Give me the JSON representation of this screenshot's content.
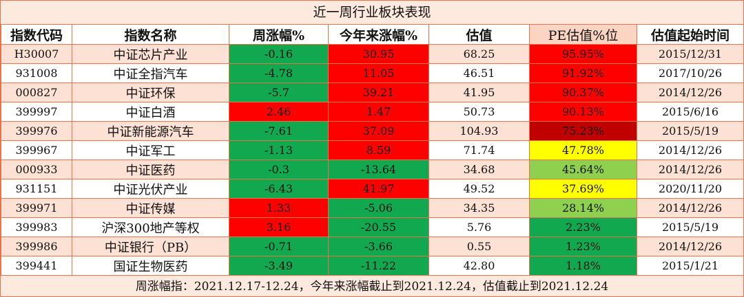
{
  "title": "近一周行业板块表现",
  "headers": [
    "指数代码",
    "指数名称",
    "周涨幅%",
    "今年来涨幅%",
    "估值",
    "PE估值%位",
    "估值起始时间"
  ],
  "colors": {
    "green": "#12a84f",
    "red": "#ff0000",
    "dark_red": "#c00000",
    "yellow": "#ffff00",
    "light_green": "#8fd14f",
    "border": "#e8734a",
    "row_alt": "#fde1d4"
  },
  "rows": [
    {
      "code": "H30007",
      "name": "中证芯片产业",
      "week": "-0.16",
      "week_color": "green",
      "ytd": "30.95",
      "ytd_color": "red",
      "val": "68.25",
      "pe": "95.95%",
      "pe_color": "red",
      "start": "2015/12/31"
    },
    {
      "code": "931008",
      "name": "中证全指汽车",
      "week": "-4.78",
      "week_color": "green",
      "ytd": "11.05",
      "ytd_color": "red",
      "val": "46.51",
      "pe": "91.92%",
      "pe_color": "red",
      "start": "2017/10/26"
    },
    {
      "code": "000827",
      "name": "中证环保",
      "week": "-5.7",
      "week_color": "green",
      "ytd": "39.21",
      "ytd_color": "red",
      "val": "41.95",
      "pe": "90.37%",
      "pe_color": "red",
      "start": "2014/12/26"
    },
    {
      "code": "399997",
      "name": "中证白酒",
      "week": "2.46",
      "week_color": "red",
      "ytd": "1.47",
      "ytd_color": "red",
      "val": "50.73",
      "pe": "90.13%",
      "pe_color": "red",
      "start": "2015/6/16"
    },
    {
      "code": "399976",
      "name": "中证新能源汽车",
      "week": "-7.61",
      "week_color": "green",
      "ytd": "37.09",
      "ytd_color": "red",
      "val": "104.93",
      "pe": "75.23%",
      "pe_color": "dark_red",
      "start": "2015/5/19"
    },
    {
      "code": "399967",
      "name": "中证军工",
      "week": "-1.13",
      "week_color": "green",
      "ytd": "8.59",
      "ytd_color": "red",
      "val": "71.74",
      "pe": "47.78%",
      "pe_color": "yellow",
      "start": "2014/12/26"
    },
    {
      "code": "000933",
      "name": "中证医药",
      "week": "-0.3",
      "week_color": "green",
      "ytd": "-13.64",
      "ytd_color": "green",
      "val": "34.68",
      "pe": "45.64%",
      "pe_color": "light_green",
      "start": "2014/12/26"
    },
    {
      "code": "931151",
      "name": "中证光伏产业",
      "week": "-6.43",
      "week_color": "green",
      "ytd": "41.97",
      "ytd_color": "red",
      "val": "49.52",
      "pe": "37.69%",
      "pe_color": "yellow",
      "start": "2020/11/20"
    },
    {
      "code": "399971",
      "name": "中证传媒",
      "week": "1.33",
      "week_color": "red",
      "ytd": "-5.06",
      "ytd_color": "green",
      "val": "34.35",
      "pe": "28.14%",
      "pe_color": "light_green",
      "start": "2014/12/26"
    },
    {
      "code": "399983",
      "name": "沪深300地产等权",
      "week": "3.16",
      "week_color": "red",
      "ytd": "-20.55",
      "ytd_color": "green",
      "val": "5.76",
      "pe": "2.23%",
      "pe_color": "green",
      "start": "2015/5/19"
    },
    {
      "code": "399986",
      "name": "中证银行（PB）",
      "week": "-0.71",
      "week_color": "green",
      "ytd": "-3.66",
      "ytd_color": "green",
      "val": "0.55",
      "pe": "1.23%",
      "pe_color": "green",
      "start": "2014/12/26"
    },
    {
      "code": "399441",
      "name": "国证生物医药",
      "week": "-3.49",
      "week_color": "green",
      "ytd": "-11.22",
      "ytd_color": "green",
      "val": "42.80",
      "pe": "1.18%",
      "pe_color": "green",
      "start": "2015/1/21"
    }
  ],
  "footer": "周涨幅指：2021.12.17-12.24，今年来涨幅截止到2021.12.24，估值截止到2021.12.24"
}
